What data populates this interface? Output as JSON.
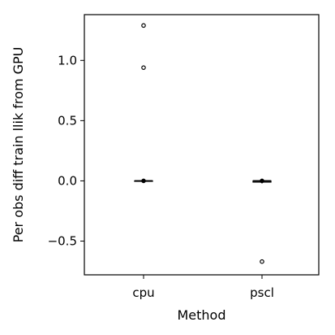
{
  "chart_data": {
    "type": "box",
    "xlabel": "Method",
    "ylabel": "Per obs diff train llik from GPU",
    "categories": [
      "cpu",
      "pscl"
    ],
    "ylim": [
      -0.78,
      1.38
    ],
    "yticks": [
      -0.5,
      0.0,
      0.5,
      1.0
    ],
    "ytick_labels": [
      "−0.5",
      "0.0",
      "0.5",
      "1.0"
    ],
    "grid": false,
    "series": [
      {
        "category": "cpu",
        "median": 0.0,
        "q1": 0.0,
        "q3": 0.0,
        "whisker_low": 0.0,
        "whisker_high": 0.0,
        "outliers": [
          1.29,
          0.94
        ]
      },
      {
        "category": "pscl",
        "median": 0.0,
        "q1": -0.01,
        "q3": 0.0,
        "whisker_low": -0.02,
        "whisker_high": 0.0,
        "outliers": [
          -0.67
        ]
      }
    ],
    "colors": {
      "box": "#000000",
      "background": "#ffffff"
    }
  }
}
